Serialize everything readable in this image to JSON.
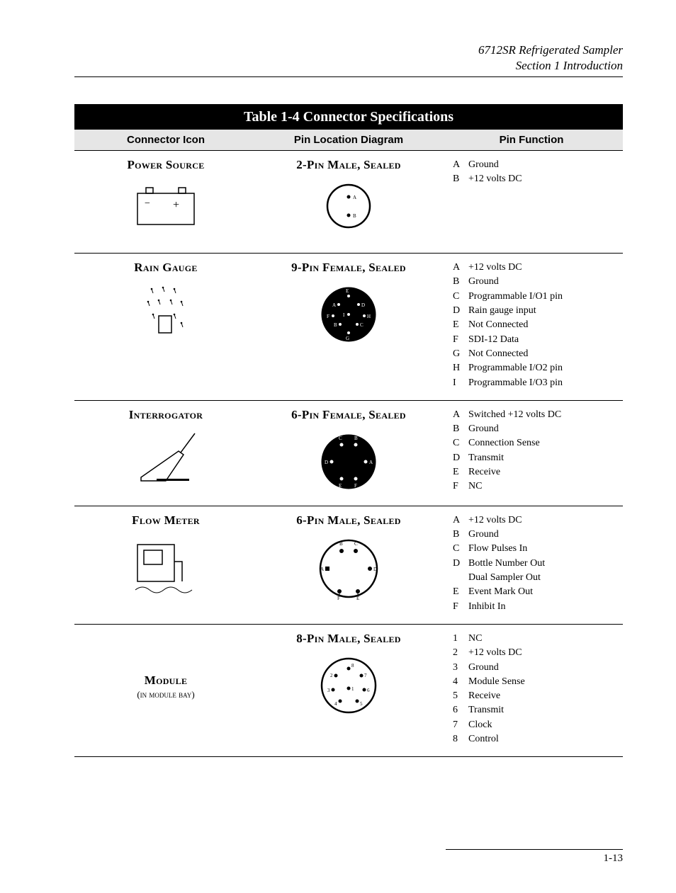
{
  "header": {
    "line1": "6712SR Refrigerated Sampler",
    "line2": "Section 1  Introduction"
  },
  "table": {
    "title": "Table 1-4  Connector Specifications",
    "columns": [
      "Connector Icon",
      "Pin Location Diagram",
      "Pin Function"
    ],
    "rows": [
      {
        "icon_title": "Power Source",
        "icon_sub": "",
        "diagram_title": "2-Pin Male, Sealed",
        "pins": [
          {
            "k": "A",
            "v": "Ground"
          },
          {
            "k": "B",
            "v": "+12 volts DC"
          }
        ]
      },
      {
        "icon_title": "Rain Gauge",
        "icon_sub": "",
        "diagram_title": "9-Pin Female, Sealed",
        "pins": [
          {
            "k": "A",
            "v": "+12 volts DC"
          },
          {
            "k": "B",
            "v": "Ground"
          },
          {
            "k": "C",
            "v": "Programmable I/O1 pin"
          },
          {
            "k": "D",
            "v": "Rain gauge input"
          },
          {
            "k": "E",
            "v": "Not Connected"
          },
          {
            "k": "F",
            "v": "SDI-12 Data"
          },
          {
            "k": "G",
            "v": "Not Connected"
          },
          {
            "k": "H",
            "v": "Programmable I/O2 pin"
          },
          {
            "k": "I",
            "v": "Programmable I/O3 pin"
          }
        ]
      },
      {
        "icon_title": "Interrogator",
        "icon_sub": "",
        "diagram_title": "6-Pin Female, Sealed",
        "pins": [
          {
            "k": "A",
            "v": "Switched +12 volts DC"
          },
          {
            "k": "B",
            "v": "Ground"
          },
          {
            "k": "C",
            "v": "Connection Sense"
          },
          {
            "k": "D",
            "v": "Transmit"
          },
          {
            "k": "E",
            "v": "Receive"
          },
          {
            "k": "F",
            "v": "NC"
          }
        ]
      },
      {
        "icon_title": "Flow Meter",
        "icon_sub": "",
        "diagram_title": "6-Pin Male, Sealed",
        "pins": [
          {
            "k": "A",
            "v": "+12 volts DC"
          },
          {
            "k": "B",
            "v": "Ground"
          },
          {
            "k": "C",
            "v": "Flow Pulses In"
          },
          {
            "k": "D",
            "v": "Bottle Number Out"
          },
          {
            "k": "",
            "v": "Dual Sampler Out"
          },
          {
            "k": "E",
            "v": "Event Mark Out"
          },
          {
            "k": "F",
            "v": "Inhibit In"
          }
        ]
      },
      {
        "icon_title": "Module",
        "icon_sub": "(in module bay)",
        "diagram_title": "8-Pin Male, Sealed",
        "pins": [
          {
            "k": "1",
            "v": "NC"
          },
          {
            "k": "2",
            "v": "+12 volts DC"
          },
          {
            "k": "3",
            "v": "Ground"
          },
          {
            "k": "4",
            "v": "Module Sense"
          },
          {
            "k": "5",
            "v": "Receive"
          },
          {
            "k": "6",
            "v": "Transmit"
          },
          {
            "k": "7",
            "v": "Clock"
          },
          {
            "k": "8",
            "v": "Control"
          }
        ]
      }
    ]
  },
  "footer": {
    "page": "1-13"
  },
  "colors": {
    "bg": "#ffffff",
    "fg": "#000000",
    "header_bg": "#e6e6e6"
  }
}
